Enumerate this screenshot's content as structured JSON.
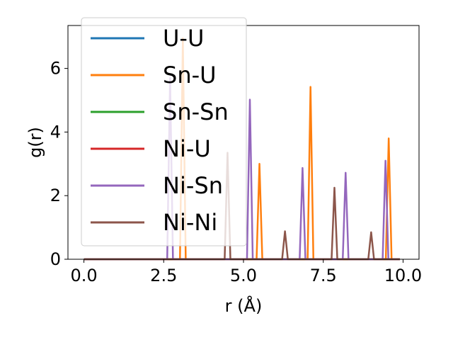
{
  "chart_data": {
    "type": "line",
    "title": "",
    "xlabel": "r (Å)",
    "ylabel": "g(r)",
    "xlim": [
      -0.5,
      10.5
    ],
    "ylim": [
      0,
      7.35
    ],
    "xticks": [
      0.0,
      2.5,
      5.0,
      7.5,
      10.0
    ],
    "xtick_labels": [
      "0.0",
      "2.5",
      "5.0",
      "7.5",
      "10.0"
    ],
    "yticks": [
      0,
      2,
      4,
      6
    ],
    "ytick_labels": [
      "0",
      "2",
      "4",
      "6"
    ],
    "grid": false,
    "legend_position": "top-left",
    "series": [
      {
        "name": "U-U",
        "color": "#1f77b4",
        "peaks": []
      },
      {
        "name": "Sn-U",
        "color": "#ff7f0e",
        "peaks": [
          [
            3.1,
            6.95
          ],
          [
            5.5,
            3.0
          ],
          [
            7.1,
            5.42
          ],
          [
            9.55,
            3.8
          ]
        ]
      },
      {
        "name": "Sn-Sn",
        "color": "#2ca02c",
        "peaks": []
      },
      {
        "name": "Ni-U",
        "color": "#d62728",
        "peaks": []
      },
      {
        "name": "Ni-Sn",
        "color": "#9467bd",
        "peaks": [
          [
            2.7,
            5.7
          ],
          [
            5.2,
            5.02
          ],
          [
            6.85,
            2.87
          ],
          [
            8.2,
            2.72
          ],
          [
            9.45,
            3.1
          ]
        ]
      },
      {
        "name": "Ni-Ni",
        "color": "#8c564b",
        "peaks": [
          [
            4.5,
            3.35
          ],
          [
            6.3,
            0.88
          ],
          [
            7.85,
            2.25
          ],
          [
            9.0,
            0.85
          ]
        ]
      }
    ],
    "x_range": [
      0.0,
      9.9
    ],
    "peak_half_width": 0.09
  }
}
